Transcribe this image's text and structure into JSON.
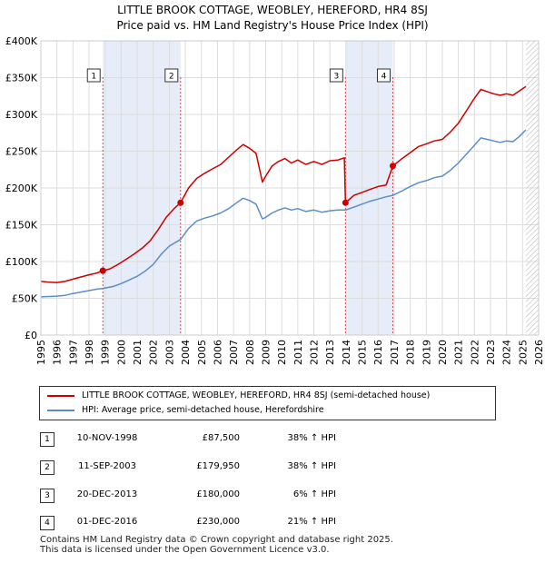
{
  "chart_data": {
    "type": "line",
    "title": "LITTLE BROOK COTTAGE, WEOBLEY, HEREFORD, HR4 8SJ",
    "subtitle": "Price paid vs. HM Land Registry's House Price Index (HPI)",
    "xlim": [
      1995,
      2026
    ],
    "ylim": [
      0,
      400000
    ],
    "x_ticks": [
      1995,
      1996,
      1997,
      1998,
      1999,
      2000,
      2001,
      2002,
      2003,
      2004,
      2005,
      2006,
      2007,
      2008,
      2009,
      2010,
      2011,
      2012,
      2013,
      2014,
      2015,
      2016,
      2017,
      2018,
      2019,
      2020,
      2021,
      2022,
      2023,
      2024,
      2025,
      2026
    ],
    "y_ticks": [
      {
        "value": 0,
        "label": "£0"
      },
      {
        "value": 50000,
        "label": "£50K"
      },
      {
        "value": 100000,
        "label": "£100K"
      },
      {
        "value": 150000,
        "label": "£150K"
      },
      {
        "value": 200000,
        "label": "£200K"
      },
      {
        "value": 250000,
        "label": "£250K"
      },
      {
        "value": 300000,
        "label": "£300K"
      },
      {
        "value": 350000,
        "label": "£350K"
      },
      {
        "value": 400000,
        "label": "£400K"
      }
    ],
    "grid": true,
    "hatched_after": 2025.2,
    "colors": {
      "property": "#cc0000",
      "hpi": "#5b8ec9",
      "band": "#e6ecf8",
      "grid": "#dddddd"
    },
    "shaded_periods": [
      [
        1998.86,
        2003.7
      ],
      [
        2013.97,
        2016.92
      ]
    ],
    "series": [
      {
        "name": "LITTLE BROOK COTTAGE, WEOBLEY, HEREFORD, HR4 8SJ (semi-detached house)",
        "key": "property",
        "points": [
          [
            1995.0,
            73000
          ],
          [
            1995.5,
            72000
          ],
          [
            1996.0,
            71500
          ],
          [
            1996.5,
            73000
          ],
          [
            1997.0,
            76000
          ],
          [
            1997.5,
            79000
          ],
          [
            1998.0,
            82000
          ],
          [
            1998.5,
            84500
          ],
          [
            1998.86,
            87500
          ],
          [
            1999.3,
            90000
          ],
          [
            1999.8,
            96000
          ],
          [
            2000.3,
            103000
          ],
          [
            2000.8,
            110000
          ],
          [
            2001.3,
            118000
          ],
          [
            2001.8,
            128000
          ],
          [
            2002.3,
            143000
          ],
          [
            2002.8,
            160000
          ],
          [
            2003.3,
            172000
          ],
          [
            2003.7,
            179950
          ],
          [
            2004.2,
            200000
          ],
          [
            2004.7,
            213000
          ],
          [
            2005.2,
            220000
          ],
          [
            2005.7,
            226000
          ],
          [
            2006.2,
            232000
          ],
          [
            2006.7,
            242000
          ],
          [
            2007.2,
            252000
          ],
          [
            2007.6,
            259000
          ],
          [
            2008.0,
            254000
          ],
          [
            2008.4,
            247000
          ],
          [
            2008.8,
            208000
          ],
          [
            2009.0,
            216000
          ],
          [
            2009.4,
            230000
          ],
          [
            2009.8,
            236000
          ],
          [
            2010.2,
            240000
          ],
          [
            2010.6,
            234000
          ],
          [
            2011.0,
            238000
          ],
          [
            2011.5,
            232000
          ],
          [
            2012.0,
            236000
          ],
          [
            2012.5,
            232000
          ],
          [
            2013.0,
            237000
          ],
          [
            2013.5,
            238000
          ],
          [
            2013.9,
            241000
          ],
          [
            2013.97,
            180000
          ],
          [
            2014.5,
            190000
          ],
          [
            2015.0,
            194000
          ],
          [
            2015.5,
            198000
          ],
          [
            2016.0,
            202000
          ],
          [
            2016.5,
            204000
          ],
          [
            2016.92,
            230000
          ],
          [
            2017.5,
            240000
          ],
          [
            2018.0,
            248000
          ],
          [
            2018.5,
            256000
          ],
          [
            2019.0,
            260000
          ],
          [
            2019.5,
            264000
          ],
          [
            2020.0,
            266000
          ],
          [
            2020.5,
            276000
          ],
          [
            2021.0,
            288000
          ],
          [
            2021.5,
            305000
          ],
          [
            2022.0,
            322000
          ],
          [
            2022.4,
            334000
          ],
          [
            2022.8,
            331000
          ],
          [
            2023.2,
            328000
          ],
          [
            2023.6,
            326000
          ],
          [
            2024.0,
            328000
          ],
          [
            2024.4,
            326000
          ],
          [
            2024.8,
            332000
          ],
          [
            2025.2,
            338000
          ]
        ]
      },
      {
        "name": "HPI: Average price, semi-detached house, Herefordshire",
        "key": "hpi",
        "points": [
          [
            1995.0,
            52000
          ],
          [
            1995.5,
            52500
          ],
          [
            1996.0,
            53000
          ],
          [
            1996.5,
            54000
          ],
          [
            1997.0,
            56500
          ],
          [
            1997.5,
            58500
          ],
          [
            1998.0,
            60500
          ],
          [
            1998.5,
            62500
          ],
          [
            1998.86,
            63500
          ],
          [
            1999.5,
            66000
          ],
          [
            2000.0,
            70000
          ],
          [
            2000.5,
            75000
          ],
          [
            2001.0,
            80000
          ],
          [
            2001.5,
            87000
          ],
          [
            2002.0,
            96000
          ],
          [
            2002.5,
            110000
          ],
          [
            2003.0,
            121000
          ],
          [
            2003.7,
            130000
          ],
          [
            2004.2,
            145000
          ],
          [
            2004.7,
            155000
          ],
          [
            2005.2,
            159000
          ],
          [
            2005.7,
            162000
          ],
          [
            2006.2,
            166000
          ],
          [
            2006.7,
            172000
          ],
          [
            2007.2,
            180000
          ],
          [
            2007.6,
            186000
          ],
          [
            2008.0,
            183000
          ],
          [
            2008.4,
            178000
          ],
          [
            2008.8,
            158000
          ],
          [
            2009.0,
            160000
          ],
          [
            2009.4,
            166000
          ],
          [
            2009.8,
            170000
          ],
          [
            2010.2,
            173000
          ],
          [
            2010.6,
            170000
          ],
          [
            2011.0,
            172000
          ],
          [
            2011.5,
            168000
          ],
          [
            2012.0,
            170000
          ],
          [
            2012.5,
            167000
          ],
          [
            2013.0,
            169000
          ],
          [
            2013.5,
            170000
          ],
          [
            2013.97,
            170000
          ],
          [
            2014.5,
            174000
          ],
          [
            2015.0,
            178000
          ],
          [
            2015.5,
            182000
          ],
          [
            2016.0,
            185000
          ],
          [
            2016.5,
            188000
          ],
          [
            2016.92,
            190000
          ],
          [
            2017.5,
            196000
          ],
          [
            2018.0,
            202000
          ],
          [
            2018.5,
            207000
          ],
          [
            2019.0,
            210000
          ],
          [
            2019.5,
            214000
          ],
          [
            2020.0,
            216000
          ],
          [
            2020.5,
            224000
          ],
          [
            2021.0,
            234000
          ],
          [
            2021.5,
            246000
          ],
          [
            2022.0,
            258000
          ],
          [
            2022.4,
            268000
          ],
          [
            2022.8,
            266000
          ],
          [
            2023.2,
            264000
          ],
          [
            2023.6,
            262000
          ],
          [
            2024.0,
            264000
          ],
          [
            2024.4,
            263000
          ],
          [
            2024.8,
            270000
          ],
          [
            2025.2,
            279000
          ]
        ]
      }
    ],
    "sales": [
      {
        "num": "1",
        "x": 1998.86,
        "y": 87500,
        "date": "10-NOV-1998",
        "price": "£87,500",
        "hpi": "38% ↑ HPI"
      },
      {
        "num": "2",
        "x": 2003.7,
        "y": 179950,
        "date": "11-SEP-2003",
        "price": "£179,950",
        "hpi": "38% ↑ HPI"
      },
      {
        "num": "3",
        "x": 2013.97,
        "y": 180000,
        "date": "20-DEC-2013",
        "price": "£180,000",
        "hpi": "6% ↑ HPI"
      },
      {
        "num": "4",
        "x": 2016.92,
        "y": 230000,
        "date": "01-DEC-2016",
        "price": "£230,000",
        "hpi": "21% ↑ HPI"
      }
    ]
  },
  "legend": [
    {
      "label": "LITTLE BROOK COTTAGE, WEOBLEY, HEREFORD, HR4 8SJ (semi-detached house)",
      "color": "#cc0000"
    },
    {
      "label": "HPI: Average price, semi-detached house, Herefordshire",
      "color": "#5b8ec9"
    }
  ],
  "footer": {
    "line1": "Contains HM Land Registry data © Crown copyright and database right 2025.",
    "line2": "This data is licensed under the Open Government Licence v3.0."
  }
}
